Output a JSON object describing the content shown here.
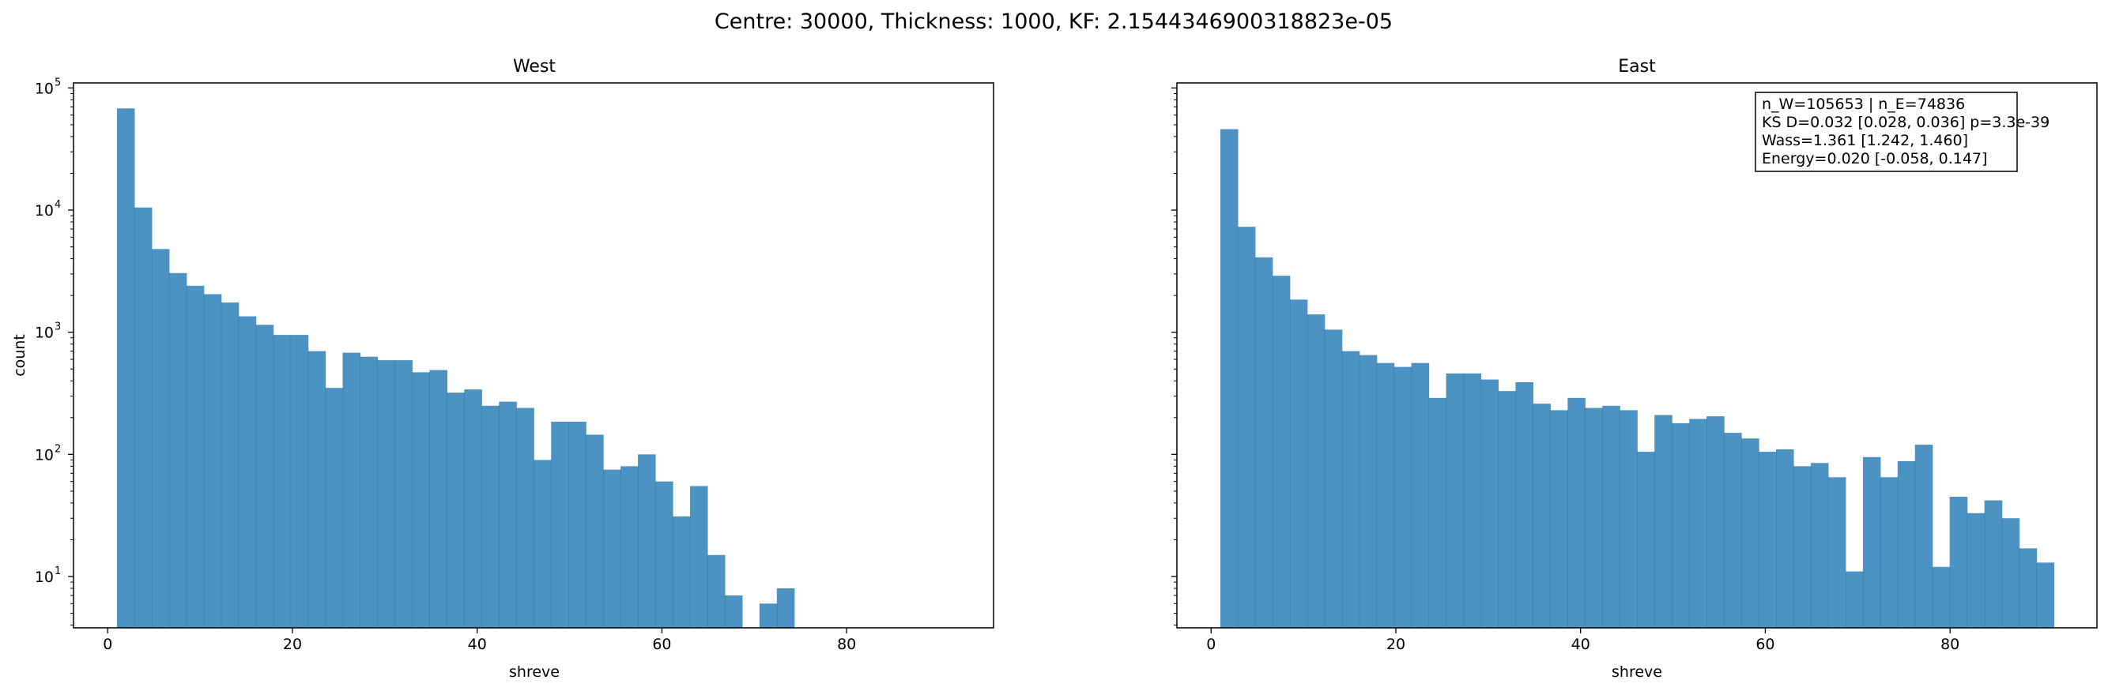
{
  "figure": {
    "suptitle": "Centre: 30000, Thickness: 1000, KF: 2.1544346900318823e-05",
    "bar_color": "#1f77b4"
  },
  "chart_data": [
    {
      "type": "bar",
      "title": "West",
      "xlabel": "shreve",
      "ylabel": "count",
      "yscale": "log",
      "xlim": [
        -3.7,
        95.9
      ],
      "ylim": [
        3.8,
        110000
      ],
      "xticks": [
        0,
        20,
        40,
        60,
        80
      ],
      "yticks": [
        10,
        100,
        1000,
        10000,
        100000
      ],
      "ytick_labels": [
        {
          "base": "10",
          "exp": "1"
        },
        {
          "base": "10",
          "exp": "2"
        },
        {
          "base": "10",
          "exp": "3"
        },
        {
          "base": "10",
          "exp": "4"
        },
        {
          "base": "10",
          "exp": "5"
        }
      ],
      "bin_start": 1,
      "bin_width": 1.88,
      "values": [
        68000,
        10500,
        4800,
        3050,
        2400,
        2050,
        1750,
        1350,
        1150,
        950,
        950,
        700,
        350,
        680,
        630,
        590,
        590,
        470,
        490,
        320,
        340,
        250,
        270,
        240,
        90,
        185,
        185,
        145,
        75,
        80,
        100,
        60,
        31,
        55,
        15,
        7,
        0,
        6,
        8,
        0,
        0,
        0,
        0,
        0,
        0,
        0,
        0,
        0,
        0,
        0
      ],
      "annotation": []
    },
    {
      "type": "bar",
      "title": "East",
      "xlabel": "shreve",
      "ylabel": "",
      "yscale": "log",
      "xlim": [
        -3.7,
        95.9
      ],
      "ylim": [
        3.8,
        110000
      ],
      "xticks": [
        0,
        20,
        40,
        60,
        80
      ],
      "yticks": [
        10,
        100,
        1000,
        10000,
        100000
      ],
      "ytick_labels": [],
      "bin_start": 1,
      "bin_width": 1.88,
      "values": [
        46000,
        7300,
        4100,
        2900,
        1850,
        1400,
        1050,
        700,
        650,
        560,
        520,
        560,
        290,
        460,
        460,
        410,
        330,
        390,
        260,
        230,
        290,
        240,
        250,
        230,
        105,
        210,
        180,
        195,
        205,
        150,
        135,
        105,
        110,
        80,
        85,
        65,
        11,
        95,
        65,
        88,
        120,
        12,
        45,
        33,
        42,
        30,
        17,
        13,
        0,
        0
      ],
      "annotation": [
        "n_W=105653 | n_E=74836",
        "KS D=0.032 [0.028, 0.036]  p=3.3e-39",
        "Wass=1.361 [1.242, 1.460]",
        "Energy=0.020 [-0.058, 0.147]"
      ]
    }
  ]
}
